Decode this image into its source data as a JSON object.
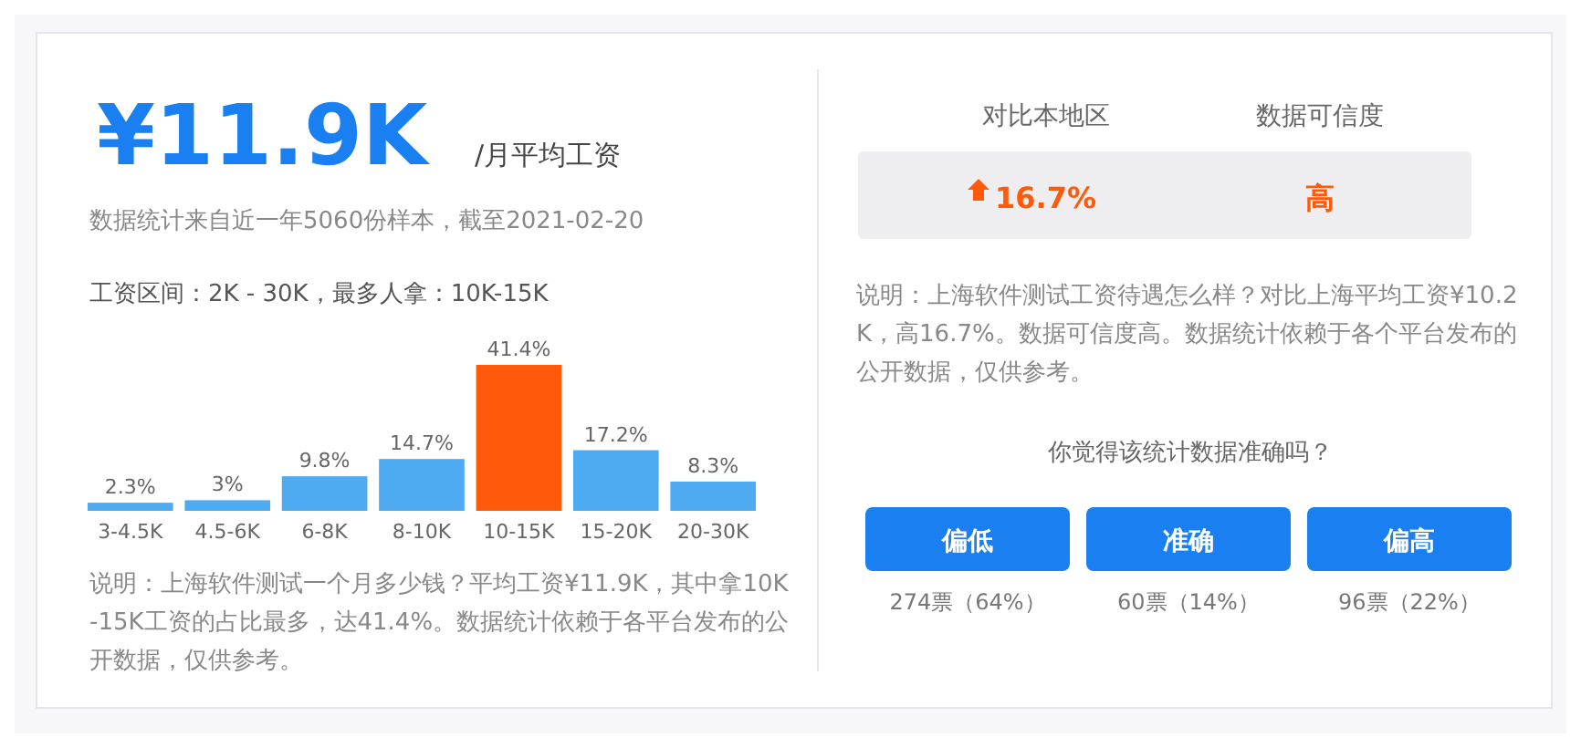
{
  "chart_data": [
    {
      "type": "bar",
      "title": "¥11.9K",
      "subtitle": "/月平均工资",
      "annotations": [
        "数据统计来自近一年5060份样本，截至2021-02-20",
        "工资区间：2K - 30K，最多人拿：10K-15K",
        "说明：上海软件测试一个月多少钱？平均工资¥11.9K，其中拿10K-15K工资的占比最多，达41.4%。数据统计依赖于各平台发布的公开数据，仅供参考。"
      ],
      "categories": [
        "3-4.5K",
        "4.5-6K",
        "6-8K",
        "8-10K",
        "10-15K",
        "15-20K",
        "20-30K"
      ],
      "values": [
        2.3,
        3,
        9.8,
        14.7,
        41.4,
        17.2,
        8.3
      ],
      "value_labels": [
        "2.3%",
        "3%",
        "9.8%",
        "14.7%",
        "41.4%",
        "17.2%",
        "8.3%"
      ],
      "colors": [
        "#4eabf2",
        "#4eabf2",
        "#4eabf2",
        "#4eabf2",
        "#ff5a0a",
        "#4eabf2",
        "#4eabf2"
      ]
    },
    {
      "type": "other",
      "annotations": [
        "对比本地区",
        "数据可信度",
        "16.7%",
        "高",
        "说明：上海软件测试工资待遇怎么样？对比上海平均工资¥10.2K，高16.7%。数据可信度高。数据统计依赖于各个平台发布的公开数据，仅供参考。",
        "你觉得该统计数据准确吗？",
        "偏低",
        "准确",
        "偏高",
        "274票（64%）",
        "60票（14%）",
        "96票（22%）"
      ]
    }
  ]
}
